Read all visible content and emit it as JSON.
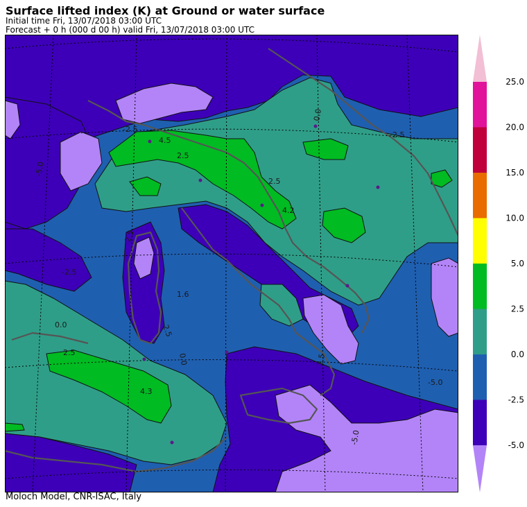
{
  "header": {
    "title": "Surface lifted index (K) at Ground or water surface",
    "initial_time": "Initial time  Fri, 13/07/2018  03:00 UTC",
    "forecast": "Forecast  +   0 h  (000 d 00 h)  valid Fri, 13/07/2018 03:00 UTC"
  },
  "footer": {
    "credit": "Moloch Model, CNR-ISAC, Italy"
  },
  "legend": {
    "labels": [
      "25.0",
      "20.0",
      "15.0",
      "10.0",
      "5.0",
      "2.5",
      "0.0",
      "-2.5",
      "-5.0"
    ],
    "colors": [
      "#f2bfd5",
      "#e0139a",
      "#c0003a",
      "#e86c00",
      "#ffff00",
      "#00bb22",
      "#2f9e88",
      "#1f5fb0",
      "#3d00b8",
      "#b384f8"
    ]
  },
  "map": {
    "contour_labels": [
      "4.5",
      "2.5",
      "-5.0",
      "-2.5",
      "0.0",
      "2.5",
      "4.2",
      "-2.5",
      "2.5",
      "1.6",
      "0.0",
      "2.5",
      "4.3",
      "-2.5",
      "0.0",
      "2.5",
      "-5.0",
      "-5.0",
      "2.5"
    ]
  }
}
